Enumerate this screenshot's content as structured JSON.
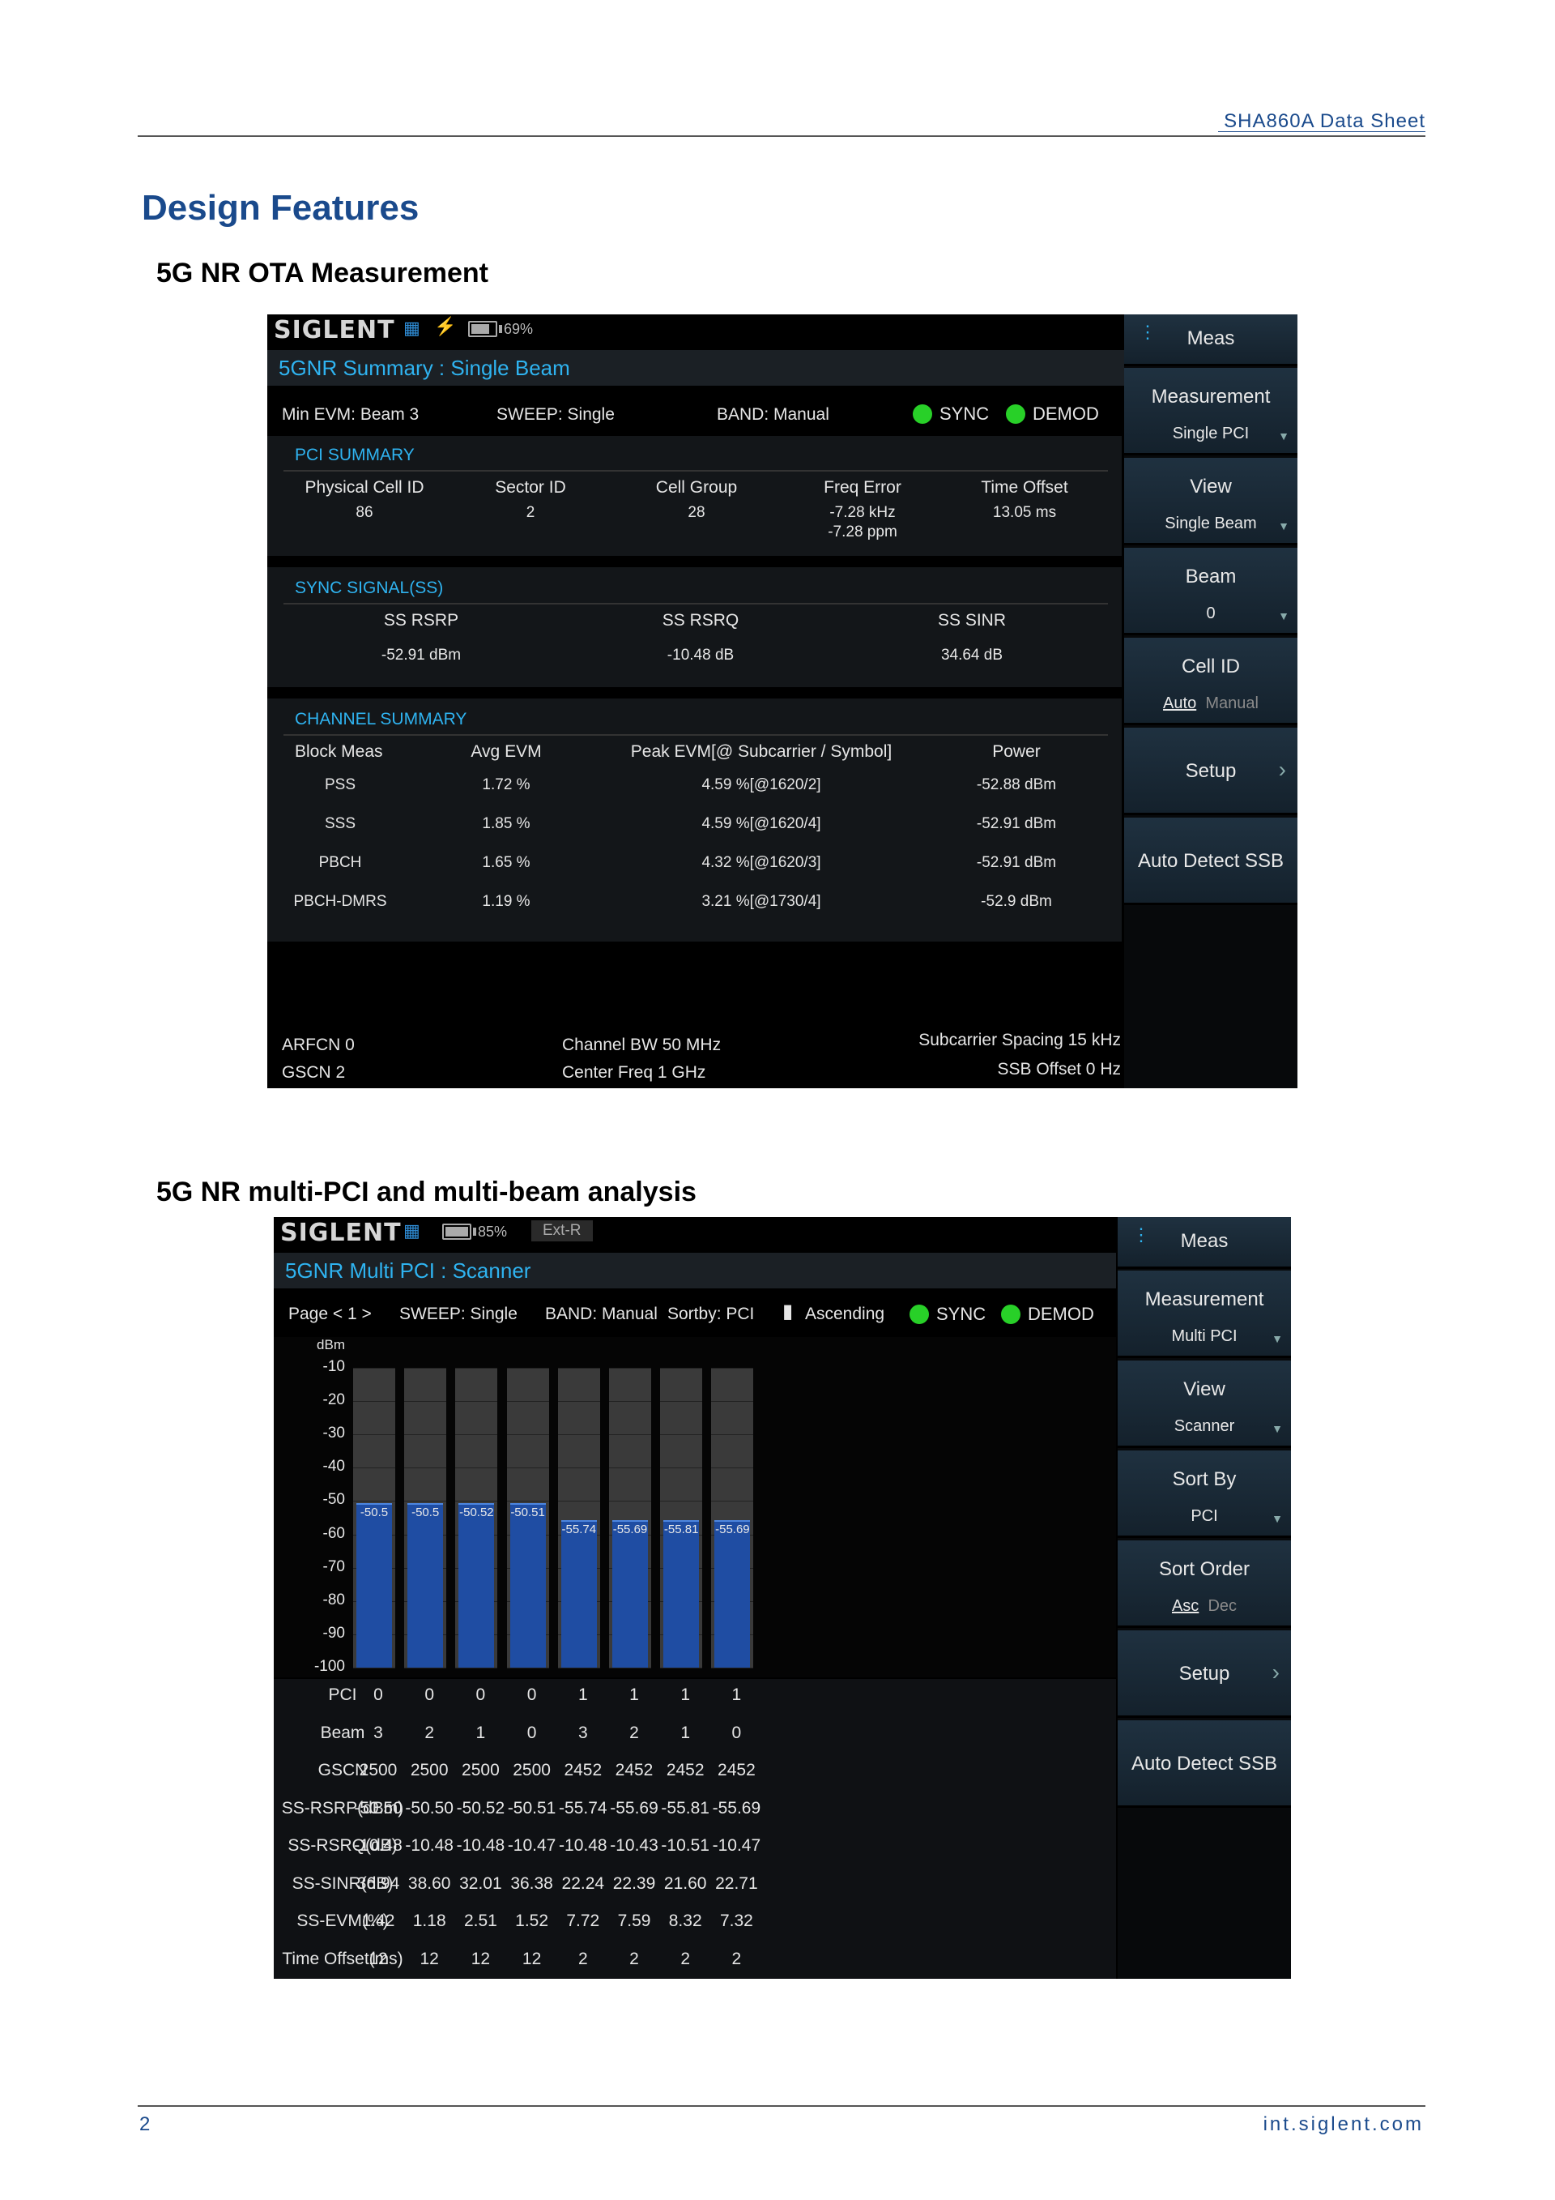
{
  "page": {
    "header_title": "SHA860A  Data  Sheet",
    "heading": "Design Features",
    "section1_title": "5G NR OTA Measurement",
    "section2_title": "5G NR multi-PCI and multi-beam analysis",
    "page_number": "2",
    "footer_url": "int.siglent.com"
  },
  "screen1": {
    "logo": "SIGLENT",
    "battery": "69%",
    "title": "5GNR Summary : Single Beam",
    "status": {
      "min_evm": "Min EVM: Beam 3",
      "sweep": "SWEEP: Single",
      "band": "BAND: Manual",
      "sync": "SYNC",
      "demod": "DEMOD"
    },
    "pci_summary": {
      "heading": "PCI SUMMARY",
      "headers": [
        "Physical Cell ID",
        "Sector ID",
        "Cell Group",
        "Freq Error",
        "Time Offset"
      ],
      "values": [
        "86",
        "2",
        "28",
        "-7.28 kHz",
        "13.05 ms"
      ],
      "freq_error_ppm": "-7.28 ppm"
    },
    "sync_signal": {
      "heading": "SYNC SIGNAL(SS)",
      "headers": [
        "SS RSRP",
        "SS RSRQ",
        "SS SINR"
      ],
      "values": [
        "-52.91 dBm",
        "-10.48 dB",
        "34.64 dB"
      ]
    },
    "channel_summary": {
      "heading": "CHANNEL SUMMARY",
      "headers": [
        "Block Meas",
        "Avg EVM",
        "Peak EVM[@ Subcarrier / Symbol]",
        "Power"
      ],
      "rows": [
        [
          "PSS",
          "1.72 %",
          "4.59 %[@1620/2]",
          "-52.88 dBm"
        ],
        [
          "SSS",
          "1.85 %",
          "4.59 %[@1620/4]",
          "-52.91 dBm"
        ],
        [
          "PBCH",
          "1.65 %",
          "4.32 %[@1620/3]",
          "-52.91 dBm"
        ],
        [
          "PBCH-DMRS",
          "1.19 %",
          "3.21 %[@1730/4]",
          "-52.9 dBm"
        ]
      ]
    },
    "footer": {
      "arfcn": "ARFCN  0",
      "gscn": "GSCN  2",
      "channel_bw": "Channel BW  50 MHz",
      "center_freq": "Center Freq  1 GHz",
      "scs": "Subcarrier Spacing  15 kHz",
      "ssb_offset": "SSB Offset  0 Hz"
    },
    "menu": {
      "meas": "Meas",
      "measurement": "Measurement",
      "measurement_val": "Single PCI",
      "view": "View",
      "view_val": "Single Beam",
      "beam": "Beam",
      "beam_val": "0",
      "cell_id": "Cell ID",
      "cell_id_auto": "Auto",
      "cell_id_manual": "Manual",
      "setup": "Setup",
      "auto_detect": "Auto Detect SSB"
    }
  },
  "screen2": {
    "logo": "SIGLENT",
    "battery": "85%",
    "ext": "Ext-R",
    "title": "5GNR Multi PCI : Scanner",
    "status": {
      "page": "Page <   1   >",
      "sweep": "SWEEP: Single",
      "band": "BAND: Manual",
      "sortby": "Sortby: PCI",
      "order": "Ascending",
      "sync": "SYNC",
      "demod": "DEMOD"
    },
    "menu": {
      "meas": "Meas",
      "measurement": "Measurement",
      "measurement_val": "Multi PCI",
      "view": "View",
      "view_val": "Scanner",
      "sort_by": "Sort By",
      "sort_by_val": "PCI",
      "sort_order": "Sort Order",
      "asc": "Asc",
      "dec": "Dec",
      "setup": "Setup",
      "auto_detect": "Auto Detect SSB"
    },
    "table": {
      "row_labels": [
        "PCI",
        "Beam",
        "GSCN",
        "SS-RSRP(dBm)",
        "SS-RSRQ(dB)",
        "SS-SINR(dB)",
        "SS-EVM(%)",
        "Time Offset(ms)"
      ],
      "rows": [
        [
          "0",
          "0",
          "0",
          "0",
          "1",
          "1",
          "1",
          "1"
        ],
        [
          "3",
          "2",
          "1",
          "0",
          "3",
          "2",
          "1",
          "0"
        ],
        [
          "2500",
          "2500",
          "2500",
          "2500",
          "2452",
          "2452",
          "2452",
          "2452"
        ],
        [
          "-50.50",
          "-50.50",
          "-50.52",
          "-50.51",
          "-55.74",
          "-55.69",
          "-55.81",
          "-55.69"
        ],
        [
          "-10.48",
          "-10.48",
          "-10.48",
          "-10.47",
          "-10.48",
          "-10.43",
          "-10.51",
          "-10.47"
        ],
        [
          "36.94",
          "38.60",
          "32.01",
          "36.38",
          "22.24",
          "22.39",
          "21.60",
          "22.71"
        ],
        [
          "1.42",
          "1.18",
          "2.51",
          "1.52",
          "7.72",
          "7.59",
          "8.32",
          "7.32"
        ],
        [
          "12",
          "12",
          "12",
          "12",
          "2",
          "2",
          "2",
          "2"
        ]
      ]
    }
  },
  "chart_data": {
    "type": "bar",
    "ylabel": "dBm",
    "ylim": [
      -100,
      -10
    ],
    "yticks": [
      "-10",
      "-20",
      "-30",
      "-40",
      "-50",
      "-60",
      "-70",
      "-80",
      "-90",
      "-100"
    ],
    "values": [
      -50.5,
      -50.5,
      -50.52,
      -50.51,
      -55.74,
      -55.69,
      -55.81,
      -55.69
    ],
    "labels": [
      "-50.5",
      "-50.5",
      "-50.52",
      "-50.51",
      "-55.74",
      "-55.69",
      "-55.81",
      "-55.69"
    ],
    "colors": {
      "bar": "#1f4da3",
      "slot": "#3a3a3a"
    }
  }
}
